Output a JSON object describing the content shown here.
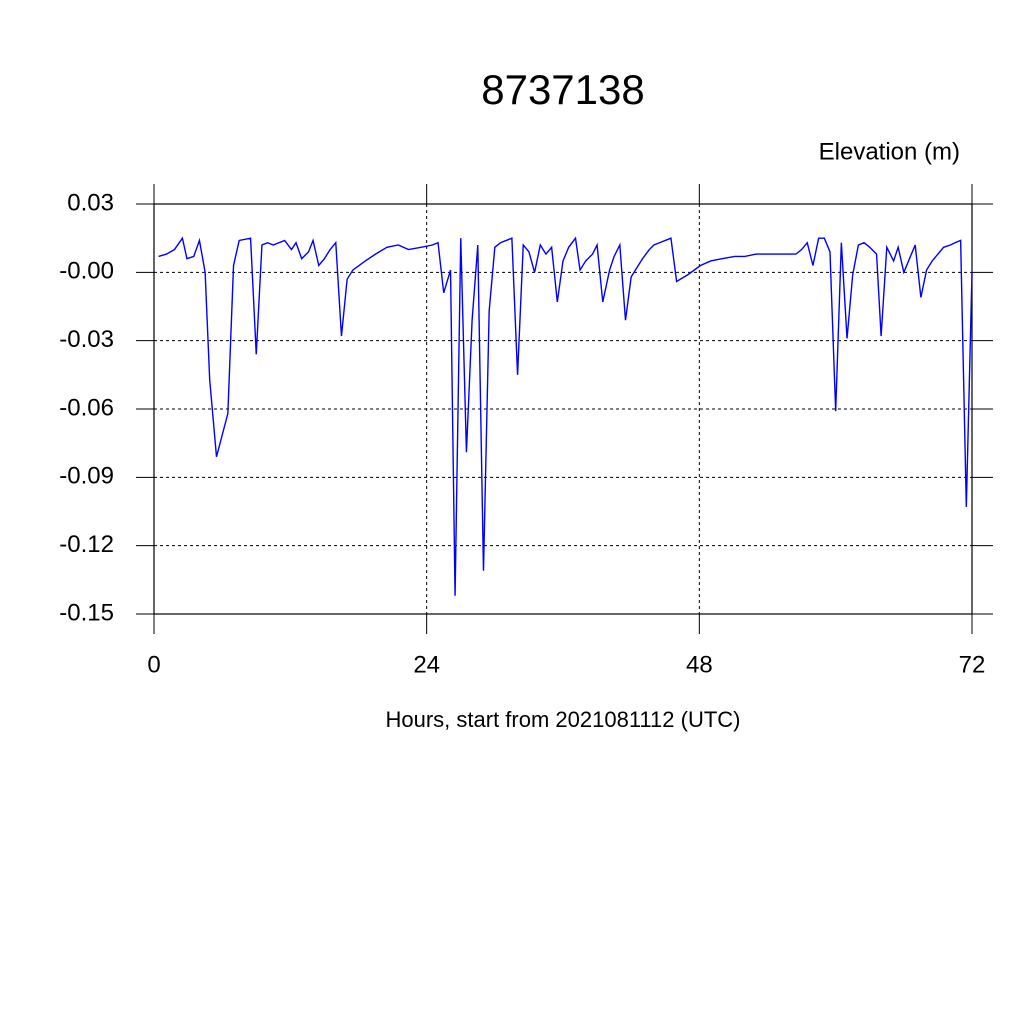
{
  "chart_data": {
    "type": "line",
    "title": "8737138",
    "ylabel": "Elevation (m)",
    "xlabel": "Hours, start from 2021081112 (UTC)",
    "xlim": [
      0,
      72
    ],
    "xticks": [
      0,
      24,
      48,
      72
    ],
    "ylim": [
      -0.15,
      0.03
    ],
    "yticks": [
      0.03,
      {
        "value": 0,
        "label": "-0.00"
      },
      -0.03,
      -0.06,
      -0.09,
      -0.12,
      -0.15
    ],
    "grid": true,
    "x": [
      0.4,
      1.1,
      1.8,
      2.5,
      2.9,
      3.5,
      4.0,
      4.5,
      4.9,
      5.5,
      6.5,
      7.0,
      7.5,
      8.5,
      9.0,
      9.5,
      10.0,
      10.5,
      11.5,
      12.1,
      12.5,
      13.0,
      13.6,
      14.0,
      14.5,
      15.0,
      15.5,
      16.0,
      16.5,
      17.0,
      17.5,
      18.6,
      19.5,
      20.5,
      21.5,
      22.4,
      23.5,
      24.5,
      25.0,
      25.5,
      26.1,
      26.5,
      27.0,
      27.5,
      28.0,
      28.5,
      29.0,
      29.5,
      30.0,
      30.5,
      31.0,
      31.5,
      32.0,
      32.5,
      33.0,
      33.5,
      34.0,
      34.5,
      35.0,
      35.5,
      36.0,
      36.5,
      37.1,
      37.5,
      38.0,
      38.6,
      39.0,
      39.5,
      40.1,
      40.5,
      41.0,
      41.5,
      42.0,
      42.5,
      43.0,
      43.6,
      44.0,
      44.5,
      45.5,
      46.0,
      47.0,
      48.1,
      49.0,
      50.0,
      51.1,
      52.0,
      53.0,
      54.0,
      55.0,
      56.0,
      56.5,
      57.0,
      57.5,
      58.0,
      58.5,
      59.0,
      59.5,
      60.0,
      60.5,
      61.0,
      61.5,
      62.0,
      62.5,
      63.0,
      63.6,
      64.0,
      64.5,
      65.1,
      65.5,
      66.0,
      67.0,
      67.5,
      68.0,
      68.5,
      69.0,
      69.5,
      70.1,
      70.5,
      71.0,
      71.5,
      72.0
    ],
    "series": [
      {
        "color": "#0000ff",
        "values": [
          0.007,
          0.008,
          0.01,
          0.015,
          0.006,
          0.007,
          0.014,
          0.0,
          -0.047,
          -0.081,
          -0.062,
          0.003,
          0.014,
          0.015,
          -0.036,
          0.012,
          0.013,
          0.012,
          0.014,
          0.01,
          0.013,
          0.006,
          0.009,
          0.014,
          0.003,
          0.006,
          0.01,
          0.013,
          -0.028,
          -0.003,
          0.001,
          0.005,
          0.008,
          0.011,
          0.012,
          0.01,
          0.011,
          0.012,
          0.013,
          -0.009,
          0.001,
          -0.142,
          0.015,
          -0.079,
          -0.021,
          0.012,
          -0.131,
          -0.017,
          0.011,
          0.013,
          0.014,
          0.015,
          -0.045,
          0.012,
          0.009,
          0.0,
          0.012,
          0.008,
          0.011,
          -0.013,
          0.005,
          0.011,
          0.015,
          0.001,
          0.005,
          0.008,
          0.012,
          -0.013,
          0.001,
          0.007,
          0.012,
          -0.021,
          -0.002,
          0.002,
          0.006,
          0.01,
          0.012,
          0.013,
          0.015,
          -0.004,
          -0.001,
          0.003,
          0.005,
          0.006,
          0.007,
          0.007,
          0.008,
          0.008,
          0.008,
          0.008,
          0.008,
          0.01,
          0.013,
          0.003,
          0.015,
          0.015,
          0.009,
          -0.061,
          0.013,
          -0.029,
          -0.001,
          0.012,
          0.013,
          0.011,
          0.008,
          -0.028,
          0.011,
          0.005,
          0.011,
          0.0,
          0.012,
          -0.011,
          0.001,
          0.005,
          0.008,
          0.011,
          0.012,
          0.013,
          0.014,
          -0.103,
          0.0
        ]
      }
    ]
  }
}
